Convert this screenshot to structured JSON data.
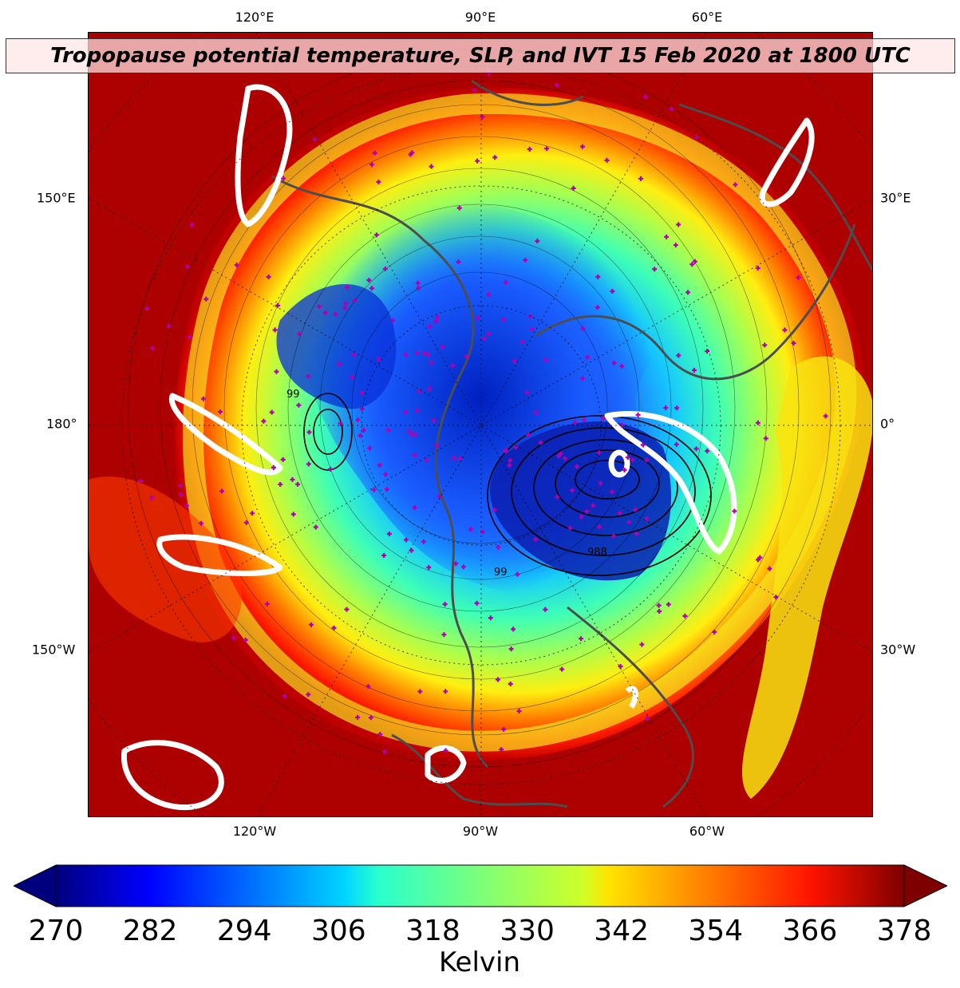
{
  "title": "Tropopause potential temperature, SLP, and IVT 15 Feb 2020 at 1800 UTC",
  "map": {
    "projection": "north-polar-stereographic",
    "field": "tropopause potential temperature",
    "overlays": [
      "sea level pressure contours",
      "integrated vapor transport contours",
      "station markers"
    ],
    "longitude_labels": {
      "top": [
        "120°E",
        "90°E",
        "60°E"
      ],
      "bottom": [
        "120°W",
        "90°W",
        "60°W"
      ],
      "left": [
        "150°E",
        "180°",
        "150°W"
      ],
      "right": [
        "30°E",
        "0°",
        "30°W"
      ]
    },
    "pressure_labels": [
      "99",
      "988",
      "99"
    ],
    "colors": {
      "background": "#7f0000",
      "coastline": "#4d4d4d",
      "ivt_contour": "#ffffff",
      "station_marker": "#b000b0",
      "slp_contour": "#000000"
    }
  },
  "colorbar": {
    "label": "Kelvin",
    "min": 270,
    "max": 378,
    "ticks": [
      "270",
      "282",
      "294",
      "306",
      "318",
      "330",
      "342",
      "354",
      "366",
      "378"
    ],
    "colormap": "jet",
    "extend": "both"
  }
}
